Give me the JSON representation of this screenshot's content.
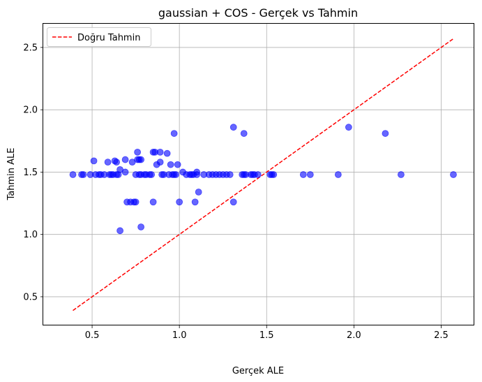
{
  "chart_data": {
    "type": "scatter",
    "title": "gaussian + COS - Gerçek vs Tahmin",
    "xlabel": "Gerçek ALE",
    "ylabel": "Tahmin ALE",
    "xlim": [
      0.22,
      2.69
    ],
    "ylim": [
      0.27,
      2.69
    ],
    "xticks": [
      0.5,
      1.0,
      1.5,
      2.0,
      2.5
    ],
    "xtick_labels": [
      "0.5",
      "1.0",
      "1.5",
      "2.0",
      "2.5"
    ],
    "yticks": [
      0.5,
      1.0,
      1.5,
      2.0,
      2.5
    ],
    "ytick_labels": [
      "0.5",
      "1.0",
      "1.5",
      "2.0",
      "2.5"
    ],
    "grid": true,
    "legend_position": "top-left",
    "legend": [
      {
        "label": "Doğru Tahmin",
        "style": "dashed-line",
        "color": "#ff0000"
      }
    ],
    "reference_line": {
      "x": [
        0.39,
        2.57
      ],
      "y": [
        0.39,
        2.57
      ],
      "color": "#ff0000"
    },
    "points_color": "#0000ff",
    "points": [
      [
        0.39,
        1.48
      ],
      [
        0.44,
        1.48
      ],
      [
        0.45,
        1.48
      ],
      [
        0.49,
        1.48
      ],
      [
        0.51,
        1.59
      ],
      [
        0.52,
        1.48
      ],
      [
        0.54,
        1.48
      ],
      [
        0.55,
        1.48
      ],
      [
        0.57,
        1.48
      ],
      [
        0.59,
        1.58
      ],
      [
        0.6,
        1.48
      ],
      [
        0.61,
        1.48
      ],
      [
        0.62,
        1.48
      ],
      [
        0.63,
        1.59
      ],
      [
        0.64,
        1.58
      ],
      [
        0.64,
        1.48
      ],
      [
        0.65,
        1.48
      ],
      [
        0.66,
        1.52
      ],
      [
        0.66,
        1.03
      ],
      [
        0.69,
        1.5
      ],
      [
        0.69,
        1.6
      ],
      [
        0.7,
        1.26
      ],
      [
        0.72,
        1.26
      ],
      [
        0.73,
        1.58
      ],
      [
        0.74,
        1.26
      ],
      [
        0.75,
        1.26
      ],
      [
        0.75,
        1.48
      ],
      [
        0.76,
        1.6
      ],
      [
        0.76,
        1.66
      ],
      [
        0.77,
        1.6
      ],
      [
        0.77,
        1.48
      ],
      [
        0.78,
        1.6
      ],
      [
        0.78,
        1.06
      ],
      [
        0.78,
        1.48
      ],
      [
        0.8,
        1.48
      ],
      [
        0.81,
        1.48
      ],
      [
        0.83,
        1.48
      ],
      [
        0.84,
        1.48
      ],
      [
        0.85,
        1.66
      ],
      [
        0.86,
        1.66
      ],
      [
        0.85,
        1.26
      ],
      [
        0.87,
        1.56
      ],
      [
        0.89,
        1.58
      ],
      [
        0.89,
        1.66
      ],
      [
        0.9,
        1.48
      ],
      [
        0.91,
        1.48
      ],
      [
        0.93,
        1.65
      ],
      [
        0.94,
        1.48
      ],
      [
        0.95,
        1.56
      ],
      [
        0.96,
        1.48
      ],
      [
        0.97,
        1.81
      ],
      [
        0.97,
        1.48
      ],
      [
        0.98,
        1.48
      ],
      [
        0.99,
        1.56
      ],
      [
        1.0,
        1.26
      ],
      [
        1.02,
        1.5
      ],
      [
        1.04,
        1.48
      ],
      [
        1.06,
        1.48
      ],
      [
        1.07,
        1.48
      ],
      [
        1.08,
        1.48
      ],
      [
        1.09,
        1.26
      ],
      [
        1.1,
        1.5
      ],
      [
        1.1,
        1.48
      ],
      [
        1.11,
        1.34
      ],
      [
        1.14,
        1.48
      ],
      [
        1.17,
        1.48
      ],
      [
        1.19,
        1.48
      ],
      [
        1.21,
        1.48
      ],
      [
        1.23,
        1.48
      ],
      [
        1.25,
        1.48
      ],
      [
        1.27,
        1.48
      ],
      [
        1.29,
        1.48
      ],
      [
        1.31,
        1.26
      ],
      [
        1.31,
        1.86
      ],
      [
        1.36,
        1.48
      ],
      [
        1.37,
        1.48
      ],
      [
        1.37,
        1.81
      ],
      [
        1.38,
        1.48
      ],
      [
        1.41,
        1.48
      ],
      [
        1.42,
        1.48
      ],
      [
        1.43,
        1.48
      ],
      [
        1.45,
        1.48
      ],
      [
        1.52,
        1.48
      ],
      [
        1.53,
        1.48
      ],
      [
        1.54,
        1.48
      ],
      [
        1.71,
        1.48
      ],
      [
        1.75,
        1.48
      ],
      [
        1.91,
        1.48
      ],
      [
        1.97,
        1.86
      ],
      [
        2.18,
        1.81
      ],
      [
        2.27,
        1.48
      ],
      [
        2.57,
        1.48
      ]
    ]
  }
}
